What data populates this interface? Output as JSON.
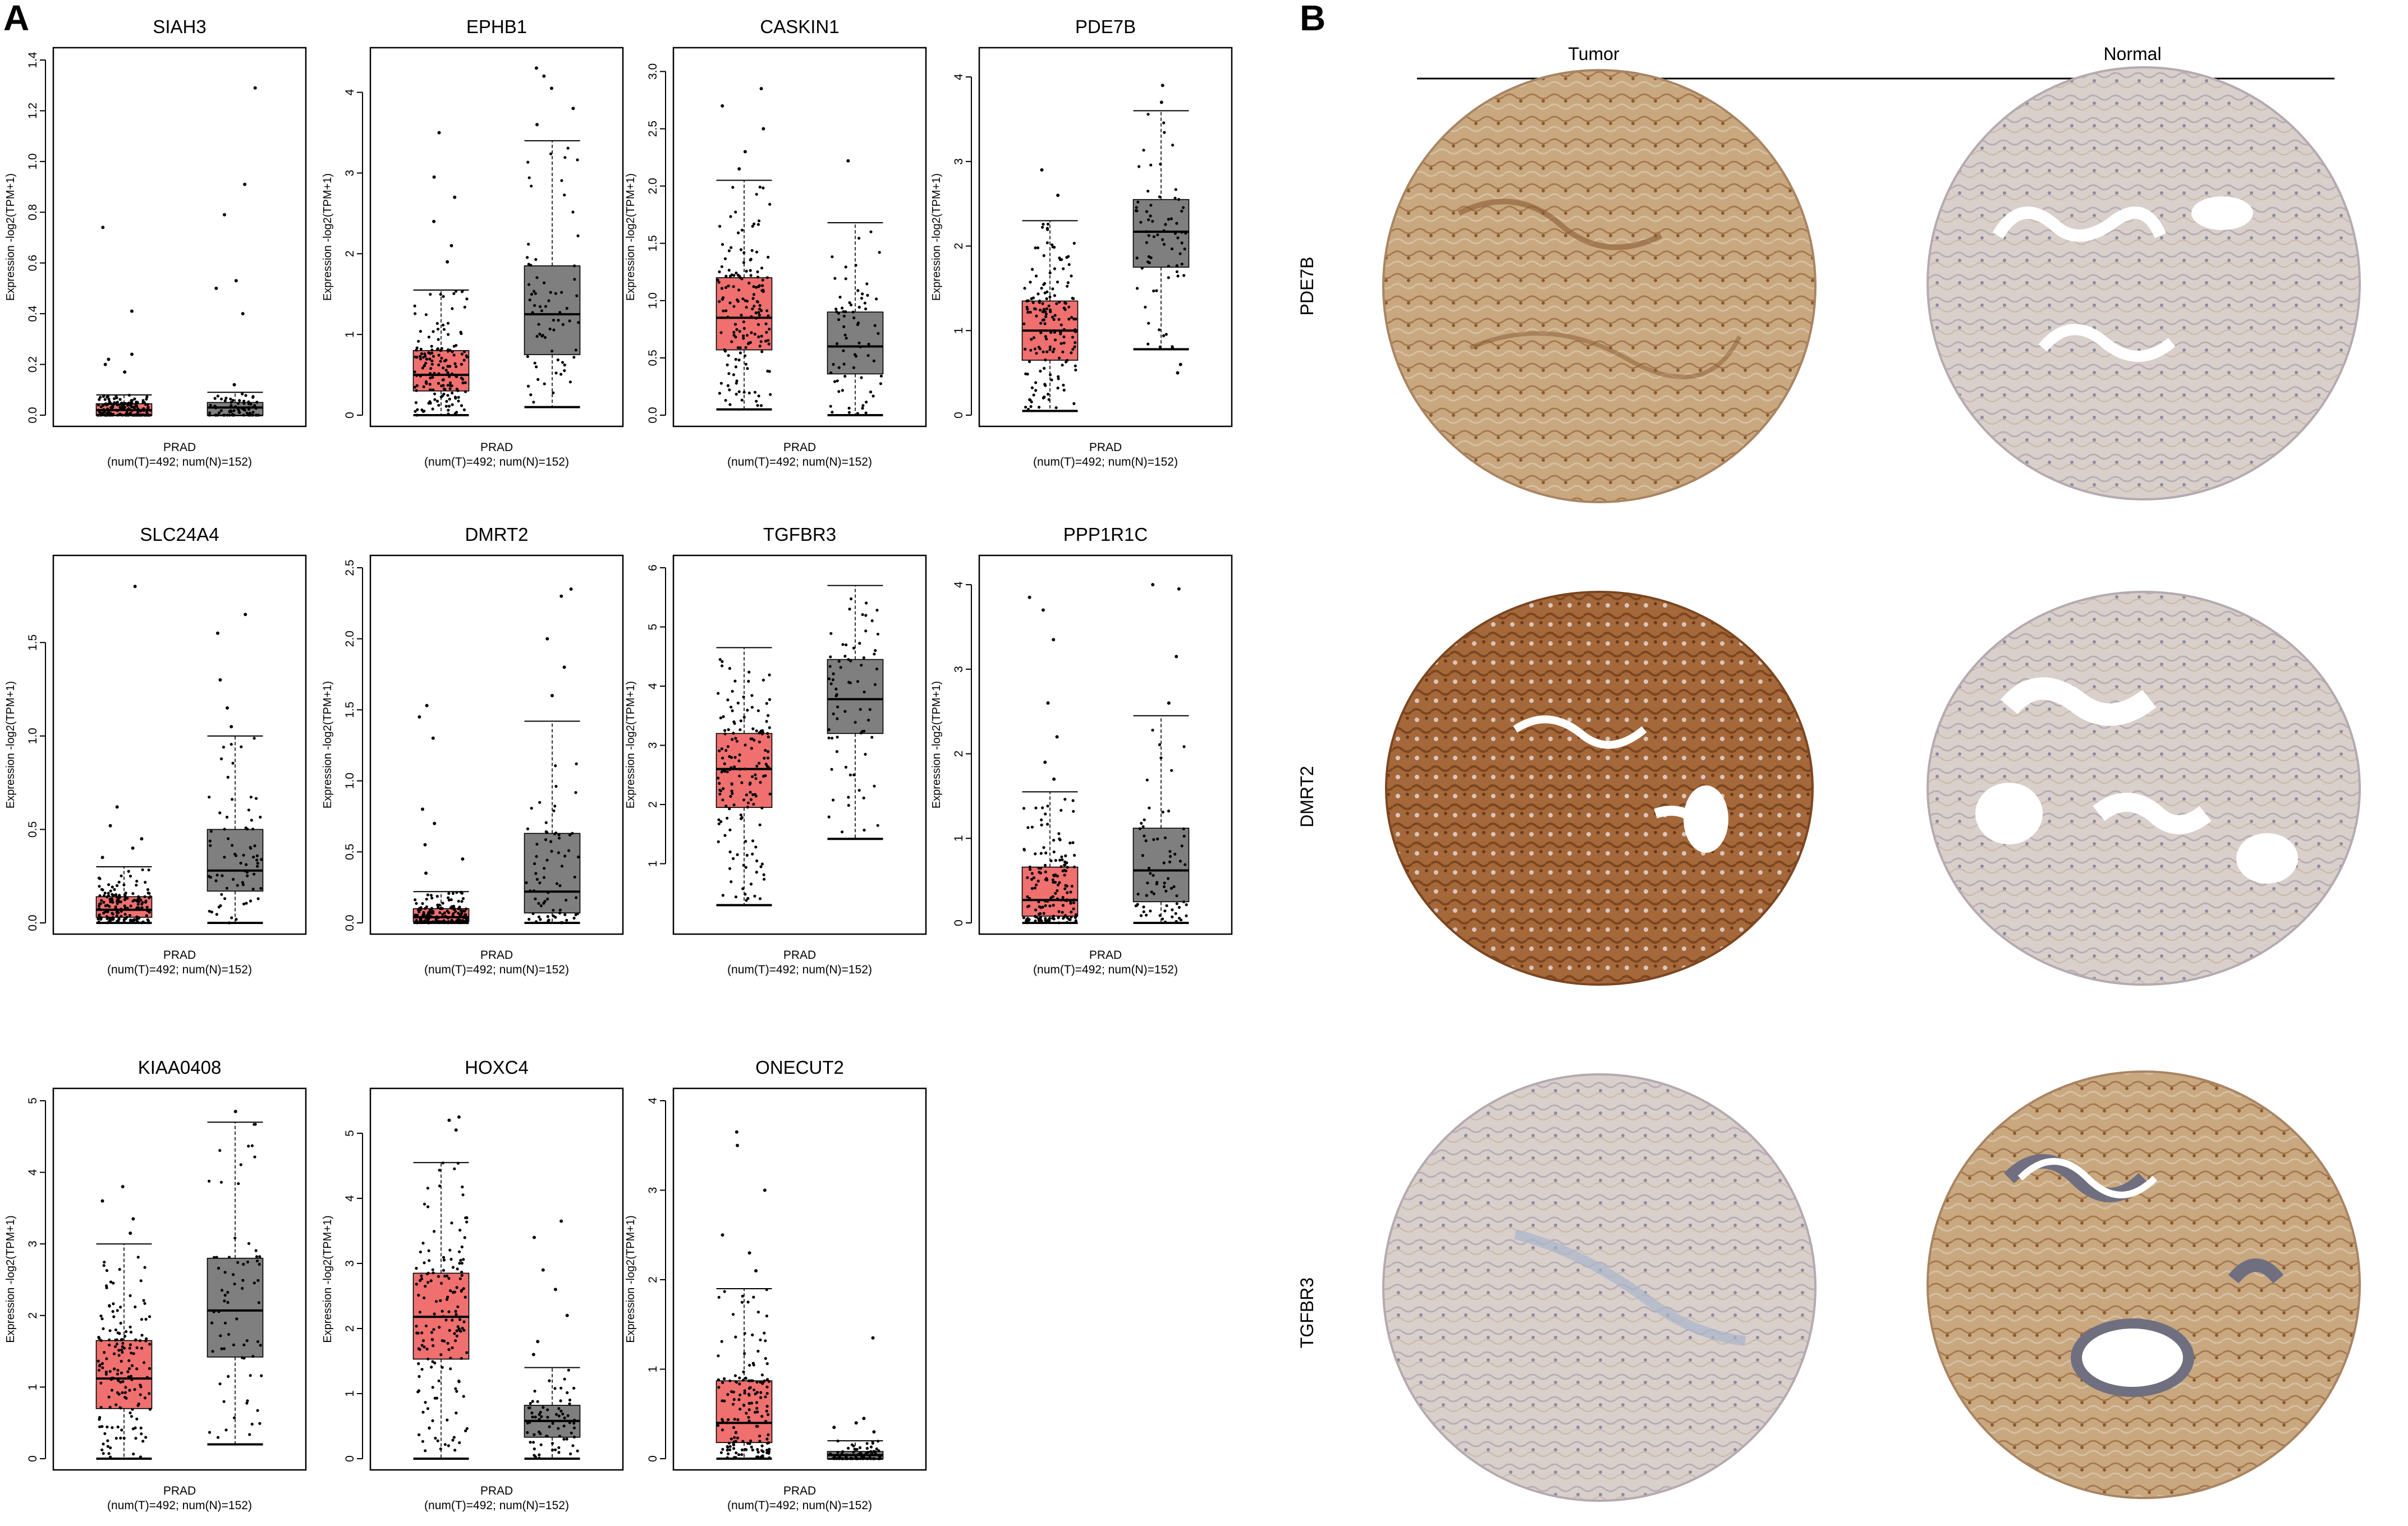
{
  "panel_labels": {
    "a": "A",
    "b": "B"
  },
  "colors": {
    "tumor": "#f07070",
    "normal": "#7f7f7f",
    "tissue_brown": "#b88b62",
    "tissue_blue": "#d2cdd6"
  },
  "icons": [
    "tissue-micrograph"
  ],
  "chart_data": [
    {
      "type": "box",
      "title": "SIAH3",
      "ylabel": "Expression -log2(TPM+1)",
      "xlabel": "PRAD",
      "xsub": "(num(T)=492; num(N)=152)",
      "ylim": [
        0,
        1.4
      ],
      "yticks": [
        0.0,
        0.2,
        0.4,
        0.6,
        0.8,
        1.0,
        1.2,
        1.4
      ],
      "tick_labels": [
        "0.0",
        "0.2",
        "0.4",
        "0.6",
        "0.8",
        "1.0",
        "1.2",
        "1.4"
      ],
      "series": [
        {
          "name": "Tumor",
          "n": 492,
          "q1": 0.0,
          "median": 0.02,
          "q3": 0.045,
          "whisker_low": 0.0,
          "whisker_high": 0.08,
          "outliers": [
            0.74,
            0.41,
            0.24,
            0.22,
            0.2,
            0.17
          ]
        },
        {
          "name": "Normal",
          "n": 152,
          "q1": 0.0,
          "median": 0.03,
          "q3": 0.05,
          "whisker_low": 0.0,
          "whisker_high": 0.09,
          "outliers": [
            1.29,
            0.91,
            0.79,
            0.53,
            0.5,
            0.4,
            0.12
          ]
        }
      ]
    },
    {
      "type": "box",
      "title": "EPHB1",
      "ylabel": "Expression -log2(TPM+1)",
      "xlabel": "PRAD",
      "xsub": "(num(T)=492; num(N)=152)",
      "ylim": [
        0,
        4.4
      ],
      "yticks": [
        0,
        1,
        2,
        3,
        4
      ],
      "tick_labels": [
        "0",
        "1",
        "2",
        "3",
        "4"
      ],
      "series": [
        {
          "name": "Tumor",
          "n": 492,
          "q1": 0.3,
          "median": 0.5,
          "q3": 0.8,
          "whisker_low": 0.0,
          "whisker_high": 1.55,
          "outliers": [
            3.5,
            2.95,
            2.7,
            2.4,
            2.1,
            1.9
          ]
        },
        {
          "name": "Normal",
          "n": 152,
          "q1": 0.75,
          "median": 1.25,
          "q3": 1.85,
          "whisker_low": 0.1,
          "whisker_high": 3.4,
          "outliers": [
            4.3,
            4.2,
            4.05,
            3.8,
            3.6
          ]
        }
      ]
    },
    {
      "type": "box",
      "title": "CASKIN1",
      "ylabel": "Expression -log2(TPM+1)",
      "xlabel": "PRAD",
      "xsub": "(num(T)=492; num(N)=152)",
      "ylim": [
        0,
        3.1
      ],
      "yticks": [
        0.0,
        0.5,
        1.0,
        1.5,
        2.0,
        2.5,
        3.0
      ],
      "tick_labels": [
        "0.0",
        "0.5",
        "1.0",
        "1.5",
        "2.0",
        "2.5",
        "3.0"
      ],
      "series": [
        {
          "name": "Tumor",
          "n": 492,
          "q1": 0.57,
          "median": 0.85,
          "q3": 1.2,
          "whisker_low": 0.05,
          "whisker_high": 2.05,
          "outliers": [
            2.85,
            2.7,
            2.5,
            2.3,
            2.15
          ]
        },
        {
          "name": "Normal",
          "n": 152,
          "q1": 0.36,
          "median": 0.6,
          "q3": 0.9,
          "whisker_low": 0.0,
          "whisker_high": 1.68,
          "outliers": [
            2.22
          ]
        }
      ]
    },
    {
      "type": "box",
      "title": "PDE7B",
      "ylabel": "Expression -log2(TPM+1)",
      "xlabel": "PRAD",
      "xsub": "(num(T)=492; num(N)=152)",
      "ylim": [
        0,
        4.2
      ],
      "yticks": [
        0,
        1,
        2,
        3,
        4
      ],
      "tick_labels": [
        "0",
        "1",
        "2",
        "3",
        "4"
      ],
      "series": [
        {
          "name": "Tumor",
          "n": 492,
          "q1": 0.65,
          "median": 1.0,
          "q3": 1.35,
          "whisker_low": 0.05,
          "whisker_high": 2.3,
          "outliers": [
            2.9,
            2.6
          ]
        },
        {
          "name": "Normal",
          "n": 152,
          "q1": 1.75,
          "median": 2.17,
          "q3": 2.55,
          "whisker_low": 0.78,
          "whisker_high": 3.6,
          "outliers": [
            3.9,
            3.7,
            0.6,
            0.5
          ]
        }
      ]
    },
    {
      "type": "box",
      "title": "SLC24A4",
      "ylabel": "Expression -log2(TPM+1)",
      "xlabel": "PRAD",
      "xsub": "(num(T)=492; num(N)=152)",
      "ylim": [
        0,
        1.9
      ],
      "yticks": [
        0.0,
        0.5,
        1.0,
        1.5
      ],
      "tick_labels": [
        "0.0",
        "0.5",
        "1.0",
        "1.5"
      ],
      "series": [
        {
          "name": "Tumor",
          "n": 492,
          "q1": 0.03,
          "median": 0.07,
          "q3": 0.14,
          "whisker_low": 0.0,
          "whisker_high": 0.3,
          "outliers": [
            1.8,
            0.62,
            0.52,
            0.45,
            0.4,
            0.35
          ]
        },
        {
          "name": "Normal",
          "n": 152,
          "q1": 0.17,
          "median": 0.28,
          "q3": 0.5,
          "whisker_low": 0.0,
          "whisker_high": 1.0,
          "outliers": [
            1.65,
            1.55,
            1.3,
            1.15,
            1.05
          ]
        }
      ]
    },
    {
      "type": "box",
      "title": "DMRT2",
      "ylabel": "Expression -log2(TPM+1)",
      "xlabel": "PRAD",
      "xsub": "(num(T)=492; num(N)=152)",
      "ylim": [
        0,
        2.5
      ],
      "yticks": [
        0.0,
        0.5,
        1.0,
        1.5,
        2.0,
        2.5
      ],
      "tick_labels": [
        "0.0",
        "0.5",
        "1.0",
        "1.5",
        "2.0",
        "2.5"
      ],
      "series": [
        {
          "name": "Tumor",
          "n": 492,
          "q1": 0.01,
          "median": 0.04,
          "q3": 0.1,
          "whisker_low": 0.0,
          "whisker_high": 0.22,
          "outliers": [
            1.53,
            1.45,
            1.3,
            0.8,
            0.7,
            0.55,
            0.45,
            0.35
          ]
        },
        {
          "name": "Normal",
          "n": 152,
          "q1": 0.07,
          "median": 0.22,
          "q3": 0.63,
          "whisker_low": 0.0,
          "whisker_high": 1.42,
          "outliers": [
            2.35,
            2.3,
            2.0,
            1.8,
            1.6
          ]
        }
      ]
    },
    {
      "type": "box",
      "title": "TGFBR3",
      "ylabel": "Expression -log2(TPM+1)",
      "xlabel": "PRAD",
      "xsub": "(num(T)=492; num(N)=152)",
      "ylim": [
        0,
        6.0
      ],
      "yticks": [
        1,
        2,
        3,
        4,
        5,
        6
      ],
      "tick_labels": [
        "1",
        "2",
        "3",
        "4",
        "5",
        "6"
      ],
      "series": [
        {
          "name": "Tumor",
          "n": 492,
          "q1": 1.95,
          "median": 2.6,
          "q3": 3.2,
          "whisker_low": 0.3,
          "whisker_high": 4.65
        },
        {
          "name": "Normal",
          "n": 152,
          "q1": 3.2,
          "median": 3.78,
          "q3": 4.45,
          "whisker_low": 1.42,
          "whisker_high": 5.7
        }
      ]
    },
    {
      "type": "box",
      "title": "PPP1R1C",
      "ylabel": "Expression -log2(TPM+1)",
      "xlabel": "PRAD",
      "xsub": "(num(T)=492; num(N)=152)",
      "ylim": [
        0,
        4.2
      ],
      "yticks": [
        0,
        1,
        2,
        3,
        4
      ],
      "tick_labels": [
        "0",
        "1",
        "2",
        "3",
        "4"
      ],
      "series": [
        {
          "name": "Tumor",
          "n": 492,
          "q1": 0.08,
          "median": 0.27,
          "q3": 0.66,
          "whisker_low": 0.0,
          "whisker_high": 1.55,
          "outliers": [
            3.85,
            3.7,
            3.35,
            2.6,
            2.2,
            1.9,
            1.7
          ]
        },
        {
          "name": "Normal",
          "n": 152,
          "q1": 0.25,
          "median": 0.62,
          "q3": 1.12,
          "whisker_low": 0.0,
          "whisker_high": 2.45,
          "outliers": [
            4.0,
            3.95,
            3.15,
            2.6
          ]
        }
      ]
    },
    {
      "type": "box",
      "title": "KIAA0408",
      "ylabel": "Expression -log2(TPM+1)",
      "xlabel": "PRAD",
      "xsub": "(num(T)=492; num(N)=152)",
      "ylim": [
        0,
        5.0
      ],
      "yticks": [
        0,
        1,
        2,
        3,
        4,
        5
      ],
      "tick_labels": [
        "0",
        "1",
        "2",
        "3",
        "4",
        "5"
      ],
      "series": [
        {
          "name": "Tumor",
          "n": 492,
          "q1": 0.7,
          "median": 1.12,
          "q3": 1.65,
          "whisker_low": 0.0,
          "whisker_high": 3.0,
          "outliers": [
            3.8,
            3.6,
            3.35,
            3.15
          ]
        },
        {
          "name": "Normal",
          "n": 152,
          "q1": 1.42,
          "median": 2.07,
          "q3": 2.8,
          "whisker_low": 0.2,
          "whisker_high": 4.7,
          "outliers": [
            4.85
          ]
        }
      ]
    },
    {
      "type": "box",
      "title": "HOXC4",
      "ylabel": "Expression -log2(TPM+1)",
      "xlabel": "PRAD",
      "xsub": "(num(T)=492; num(N)=152)",
      "ylim": [
        0,
        5.5
      ],
      "yticks": [
        0,
        1,
        2,
        3,
        4,
        5
      ],
      "tick_labels": [
        "0",
        "1",
        "2",
        "3",
        "4",
        "5"
      ],
      "series": [
        {
          "name": "Tumor",
          "n": 492,
          "q1": 1.53,
          "median": 2.18,
          "q3": 2.85,
          "whisker_low": 0.0,
          "whisker_high": 4.55,
          "outliers": [
            5.25,
            5.2,
            5.05
          ]
        },
        {
          "name": "Normal",
          "n": 152,
          "q1": 0.33,
          "median": 0.58,
          "q3": 0.82,
          "whisker_low": 0.0,
          "whisker_high": 1.4,
          "outliers": [
            3.65,
            3.4,
            2.9,
            2.6,
            2.2,
            1.8,
            1.6
          ]
        }
      ]
    },
    {
      "type": "box",
      "title": "ONECUT2",
      "ylabel": "Expression -log2(TPM+1)",
      "xlabel": "PRAD",
      "xsub": "(num(T)=492; num(N)=152)",
      "ylim": [
        0,
        4.0
      ],
      "yticks": [
        0,
        1,
        2,
        3,
        4
      ],
      "tick_labels": [
        "0",
        "1",
        "2",
        "3",
        "4"
      ],
      "series": [
        {
          "name": "Tumor",
          "n": 492,
          "q1": 0.18,
          "median": 0.4,
          "q3": 0.87,
          "whisker_low": 0.0,
          "whisker_high": 1.9,
          "outliers": [
            3.65,
            3.5,
            3.0,
            2.5,
            2.3,
            2.1
          ]
        },
        {
          "name": "Normal",
          "n": 152,
          "q1": 0.0,
          "median": 0.04,
          "q3": 0.08,
          "whisker_low": 0.0,
          "whisker_high": 0.2,
          "outliers": [
            1.35,
            0.45,
            0.4,
            0.35,
            0.3
          ]
        }
      ]
    }
  ],
  "ihc": {
    "columns": [
      "Tumor",
      "Normal"
    ],
    "rows": [
      {
        "gene": "PDE7B",
        "tumor_stain": "moderate",
        "normal_stain": "weak"
      },
      {
        "gene": "DMRT2",
        "tumor_stain": "strong",
        "normal_stain": "weak"
      },
      {
        "gene": "TGFBR3",
        "tumor_stain": "weak",
        "normal_stain": "moderate"
      }
    ]
  }
}
